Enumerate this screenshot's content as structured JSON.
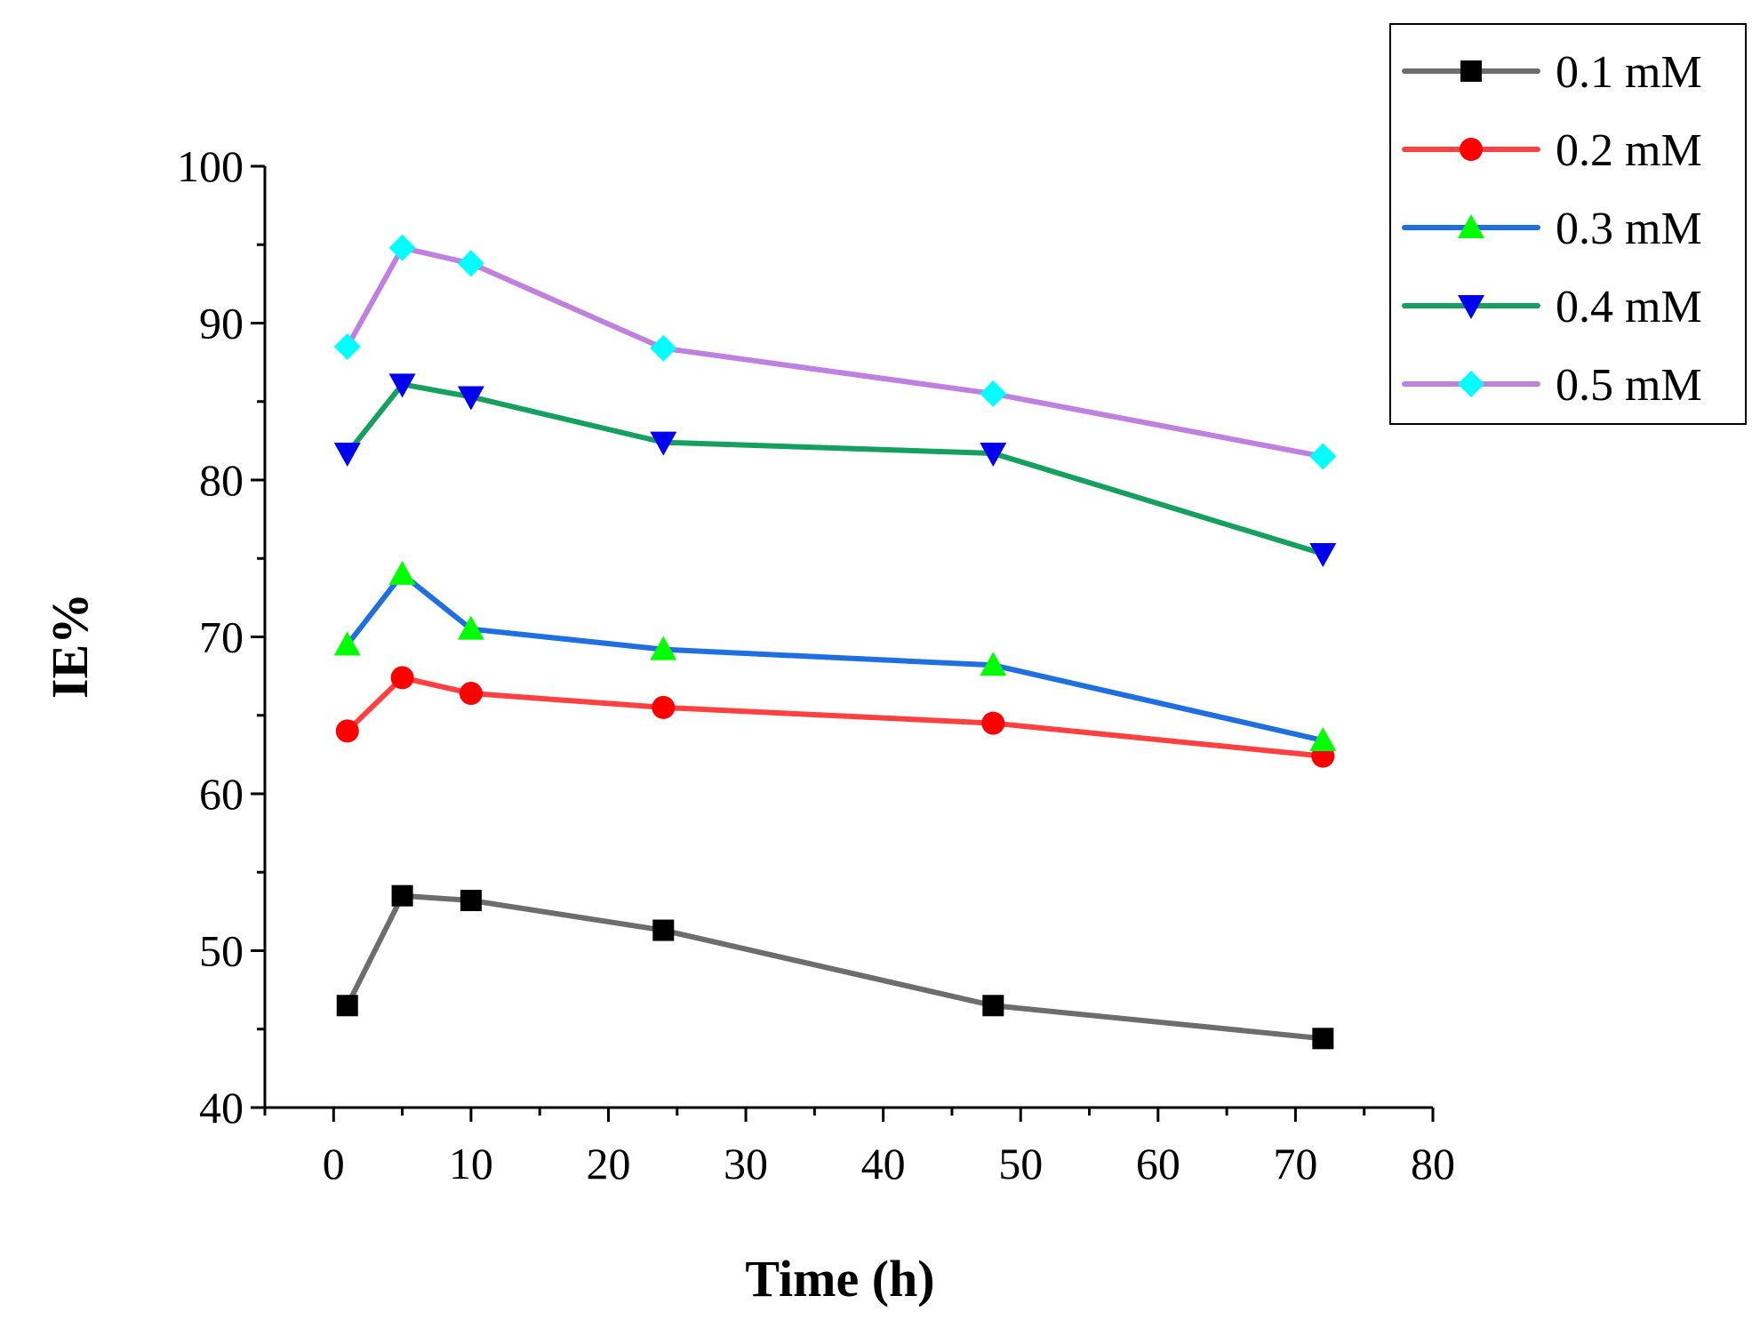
{
  "chart_data": {
    "type": "line",
    "title": "",
    "xlabel": "Time (h)",
    "ylabel": "IE%",
    "xlim": [
      -5,
      80
    ],
    "ylim": [
      40,
      100
    ],
    "xticks": [
      0,
      10,
      20,
      30,
      40,
      50,
      60,
      70,
      80
    ],
    "yticks": [
      40,
      50,
      60,
      70,
      80,
      90,
      100
    ],
    "x": [
      1,
      5,
      10,
      24,
      48,
      72
    ],
    "legend_position": "top-right",
    "series": [
      {
        "name": "0.1 mM",
        "line_color": "#6d6d6d",
        "marker_color": "#000000",
        "marker": "square",
        "values": [
          46.5,
          53.5,
          53.2,
          51.3,
          46.5,
          44.4
        ]
      },
      {
        "name": "0.2 mM",
        "line_color": "#ff4040",
        "marker_color": "#ff0000",
        "marker": "circle",
        "values": [
          64.0,
          67.4,
          66.4,
          65.5,
          64.5,
          62.4
        ]
      },
      {
        "name": "0.3 mM",
        "line_color": "#1f6fe0",
        "marker_color": "#00ff00",
        "marker": "triangle-up",
        "values": [
          69.5,
          74.0,
          70.5,
          69.2,
          68.2,
          63.4
        ]
      },
      {
        "name": "0.4 mM",
        "line_color": "#16a060",
        "marker_color": "#0000ee",
        "marker": "triangle-down",
        "values": [
          81.7,
          86.1,
          85.3,
          82.4,
          81.7,
          75.3
        ]
      },
      {
        "name": "0.5 mM",
        "line_color": "#c080e0",
        "marker_color": "#00ffff",
        "marker": "diamond",
        "values": [
          88.5,
          94.8,
          93.8,
          88.4,
          85.5,
          81.5
        ]
      }
    ]
  }
}
